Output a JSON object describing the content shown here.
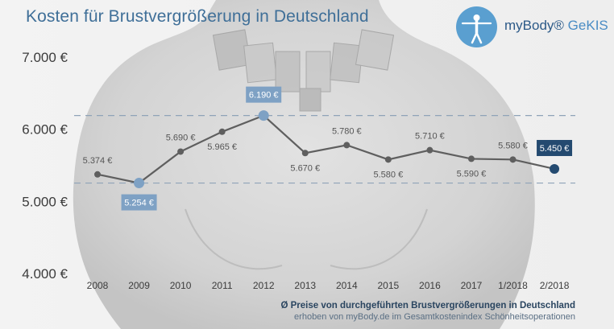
{
  "header": {
    "title": "Kosten für Brustvergrößerung in Deutschland"
  },
  "logo": {
    "brand": "myBody®",
    "sub": "GeKIS"
  },
  "footer": {
    "line1": "Ø Preise von durchgeführten Brustvergrößerungen in Deutschland",
    "line2": "erhoben von myBody.de im Gesamtkostenindex Schönheitsoperationen"
  },
  "colors": {
    "title": "#3f6f98",
    "line": "#5f5f5f",
    "point": "#5f5f5f",
    "highlight_point": "#7ea1c4",
    "highlight_box": "#7ea1c4",
    "current_point": "#244a70",
    "current_box": "#244a70",
    "reference_line": "#8fa3b8",
    "axis_text": "#3c3c3c"
  },
  "chart_data": {
    "type": "line",
    "categories": [
      "2008",
      "2009",
      "2010",
      "2011",
      "2012",
      "2013",
      "2014",
      "2015",
      "2016",
      "2017",
      "1/2018",
      "2/2018"
    ],
    "values": [
      5374,
      5254,
      5690,
      5965,
      6190,
      5670,
      5780,
      5580,
      5710,
      5590,
      5580,
      5450
    ],
    "data_labels": [
      "5.374 €",
      "5.254 €",
      "5.690 €",
      "5.965 €",
      "6.190 €",
      "5.670  €",
      "5.780 €",
      "5.580 €",
      "5.710 €",
      "5.590 €",
      "5.580 €",
      "5.450 €"
    ],
    "highlight": {
      "min_index": 1,
      "max_index": 4,
      "current_index": 11
    },
    "reference_lines": [
      6190,
      5254
    ],
    "ylim": [
      4000,
      7000
    ],
    "yticks": [
      7000,
      6000,
      5000,
      4000
    ],
    "ytick_labels": [
      "7.000 €",
      "6.000 €",
      "5.000 €",
      "4.000 €"
    ],
    "grid": false,
    "legend": "none"
  }
}
